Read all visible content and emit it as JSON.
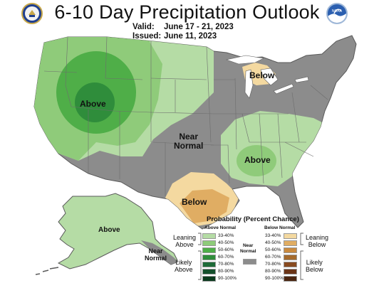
{
  "header": {
    "title": "6-10 Day Precipitation Outlook",
    "valid_label": "Valid:",
    "valid_value": "June 17 - 21, 2023",
    "issued_label": "Issued:",
    "issued_value": "June 11, 2023"
  },
  "logos": {
    "left_icon": "doc-seal-icon",
    "right_icon": "noaa-logo-icon",
    "right_text": "NOAA"
  },
  "map_labels": {
    "above_west": "Above",
    "near_normal": "Near\nNormal",
    "below_great_lakes": "Below",
    "above_southeast": "Above",
    "below_texas": "Below",
    "above_alaska": "Above",
    "near_normal_alaska": "Near\nNormal"
  },
  "legend": {
    "title": "Probability (Percent Chance)",
    "above_header": "Above Normal",
    "below_header": "Below Normal",
    "near_header": "Near\nNormal",
    "leaning_above": "Leaning\nAbove",
    "likely_above": "Likely\nAbove",
    "leaning_below": "Leaning\nBelow",
    "likely_below": "Likely\nBelow",
    "above_bins": [
      {
        "label": "33-40%",
        "color": "#b5dca5"
      },
      {
        "label": "40-50%",
        "color": "#8fcb7a"
      },
      {
        "label": "50-60%",
        "color": "#4fae48"
      },
      {
        "label": "60-70%",
        "color": "#2f8d3b"
      },
      {
        "label": "70-80%",
        "color": "#1e6b38"
      },
      {
        "label": "80-90%",
        "color": "#14502c"
      },
      {
        "label": "90-100%",
        "color": "#0b3a1d"
      }
    ],
    "below_bins": [
      {
        "label": "33-40%",
        "color": "#f4d9a0"
      },
      {
        "label": "40-50%",
        "color": "#e0ad63"
      },
      {
        "label": "50-60%",
        "color": "#c98a3f"
      },
      {
        "label": "60-70%",
        "color": "#a56a2c"
      },
      {
        "label": "70-80%",
        "color": "#884a1f"
      },
      {
        "label": "80-90%",
        "color": "#6a3417"
      },
      {
        "label": "90-100%",
        "color": "#4a2510"
      }
    ],
    "near_color": "#8c8c8c"
  },
  "colors": {
    "near_normal_gray": "#8c8c8c",
    "above_33_40": "#b5dca5",
    "above_40_50": "#8fcb7a",
    "above_50_60": "#4fae48",
    "above_60_70": "#2f8d3b",
    "below_33_40": "#f4d9a0",
    "below_40_50": "#e0ad63",
    "border": "#5a5a5a"
  }
}
